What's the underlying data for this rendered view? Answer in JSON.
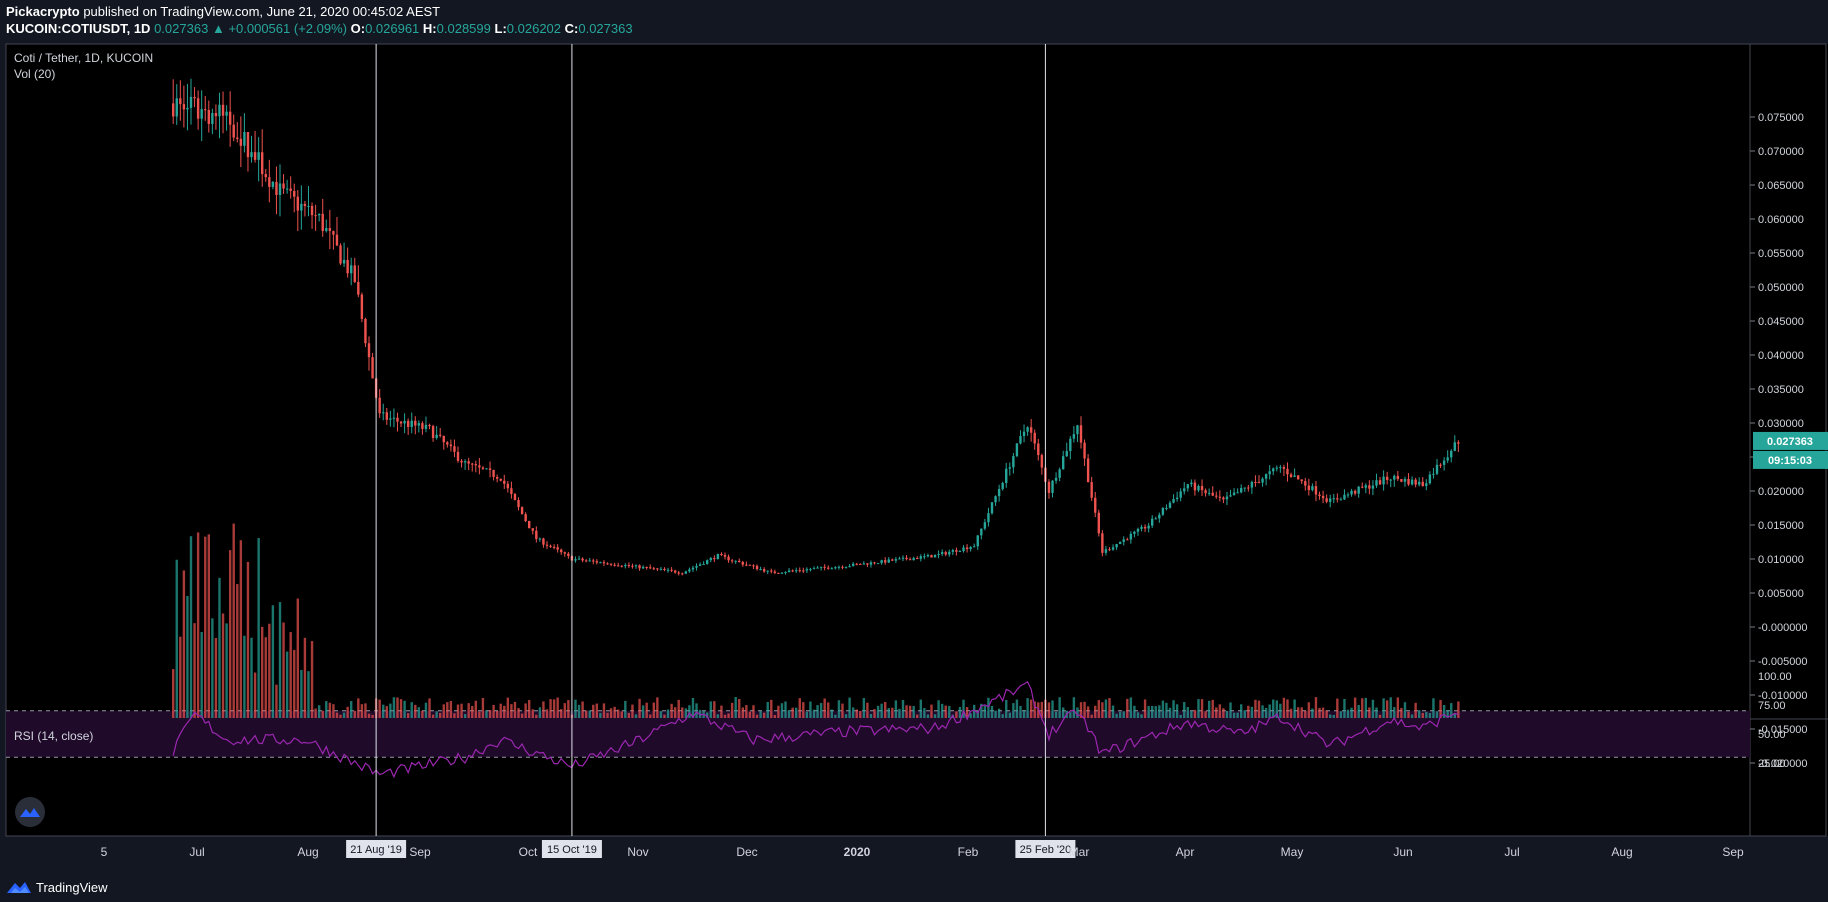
{
  "header": {
    "author": "Pickacrypto",
    "published_text": "published on TradingView.com, June 21, 2020 00:45:02 AEST",
    "symbol": "KUCOIN:COTIUSDT, 1D",
    "last": "0.027363",
    "change": "+0.000561 (+2.09%)",
    "open_label": "O:",
    "open": "0.026961",
    "high_label": "H:",
    "high": "0.028599",
    "low_label": "L:",
    "low": "0.026202",
    "close_label": "C:",
    "close": "0.027363"
  },
  "legend": {
    "title": "Coti / Tether, 1D, KUCOIN",
    "volume": "Vol (20)",
    "rsi": "RSI (14, close)"
  },
  "price_tag": {
    "price": "0.027363",
    "countdown": "09:15:03"
  },
  "footer": {
    "brand": "TradingView"
  },
  "colors": {
    "up": "#26a69a",
    "down": "#ef5350",
    "rsi": "#9c27b0",
    "rsi_band": "#1f0a2a",
    "price_tag": "#26a69a"
  },
  "chart_data": {
    "type": "candlestick",
    "symbol": "KUCOIN:COTIUSDT",
    "interval": "1D",
    "x_ticks": [
      "5",
      "Jul",
      "Aug",
      "Sep",
      "Oct",
      "Nov",
      "Dec",
      "2020",
      "Feb",
      "Mar",
      "Apr",
      "May",
      "Jun",
      "Jul",
      "Aug",
      "Sep"
    ],
    "date_markers": [
      "21 Aug '19",
      "15 Oct '19",
      "25 Feb '20"
    ],
    "price_axis": [
      "0.075000",
      "0.070000",
      "0.065000",
      "0.060000",
      "0.055000",
      "0.050000",
      "0.045000",
      "0.040000",
      "0.035000",
      "0.030000",
      "0.025000",
      "0.020000",
      "0.015000",
      "0.010000",
      "0.005000",
      "-0.000000",
      "-0.005000",
      "-0.010000",
      "-0.015000",
      "-0.020000"
    ],
    "rsi_axis": [
      "100.00",
      "75.00",
      "50.00",
      "25.00"
    ],
    "rsi_levels": {
      "upper": 70,
      "lower": 30
    },
    "price_anchors": [
      {
        "date": "2019-06-25",
        "close": 0.077
      },
      {
        "date": "2019-07-10",
        "close": 0.075
      },
      {
        "date": "2019-07-25",
        "close": 0.064
      },
      {
        "date": "2019-08-05",
        "close": 0.06
      },
      {
        "date": "2019-08-15",
        "close": 0.051
      },
      {
        "date": "2019-08-22",
        "close": 0.031
      },
      {
        "date": "2019-09-05",
        "close": 0.029
      },
      {
        "date": "2019-09-15",
        "close": 0.024
      },
      {
        "date": "2019-09-25",
        "close": 0.022
      },
      {
        "date": "2019-10-05",
        "close": 0.013
      },
      {
        "date": "2019-10-15",
        "close": 0.01
      },
      {
        "date": "2019-10-31",
        "close": 0.009
      },
      {
        "date": "2019-11-15",
        "close": 0.008
      },
      {
        "date": "2019-11-25",
        "close": 0.0105
      },
      {
        "date": "2019-12-10",
        "close": 0.008
      },
      {
        "date": "2019-12-31",
        "close": 0.009
      },
      {
        "date": "2020-01-25",
        "close": 0.0105
      },
      {
        "date": "2020-02-05",
        "close": 0.012
      },
      {
        "date": "2020-02-20",
        "close": 0.03
      },
      {
        "date": "2020-02-26",
        "close": 0.02
      },
      {
        "date": "2020-03-05",
        "close": 0.03
      },
      {
        "date": "2020-03-12",
        "close": 0.011
      },
      {
        "date": "2020-03-25",
        "close": 0.015
      },
      {
        "date": "2020-04-05",
        "close": 0.021
      },
      {
        "date": "2020-04-15",
        "close": 0.0185
      },
      {
        "date": "2020-05-01",
        "close": 0.0235
      },
      {
        "date": "2020-05-15",
        "close": 0.0185
      },
      {
        "date": "2020-06-01",
        "close": 0.022
      },
      {
        "date": "2020-06-10",
        "close": 0.021
      },
      {
        "date": "2020-06-20",
        "close": 0.0274
      }
    ],
    "rsi_anchors": [
      {
        "date": "2019-06-25",
        "value": 35
      },
      {
        "date": "2019-07-01",
        "value": 67
      },
      {
        "date": "2019-07-10",
        "value": 45
      },
      {
        "date": "2019-08-01",
        "value": 45
      },
      {
        "date": "2019-08-22",
        "value": 15
      },
      {
        "date": "2019-09-15",
        "value": 30
      },
      {
        "date": "2019-09-25",
        "value": 45
      },
      {
        "date": "2019-10-15",
        "value": 22
      },
      {
        "date": "2019-11-01",
        "value": 42
      },
      {
        "date": "2019-11-18",
        "value": 68
      },
      {
        "date": "2019-12-05",
        "value": 45
      },
      {
        "date": "2019-12-31",
        "value": 52
      },
      {
        "date": "2020-01-25",
        "value": 55
      },
      {
        "date": "2020-02-20",
        "value": 92
      },
      {
        "date": "2020-02-26",
        "value": 50
      },
      {
        "date": "2020-03-05",
        "value": 70
      },
      {
        "date": "2020-03-12",
        "value": 33
      },
      {
        "date": "2020-04-05",
        "value": 60
      },
      {
        "date": "2020-04-20",
        "value": 50
      },
      {
        "date": "2020-05-01",
        "value": 65
      },
      {
        "date": "2020-05-15",
        "value": 40
      },
      {
        "date": "2020-06-01",
        "value": 62
      },
      {
        "date": "2020-06-10",
        "value": 55
      },
      {
        "date": "2020-06-20",
        "value": 70
      }
    ]
  }
}
